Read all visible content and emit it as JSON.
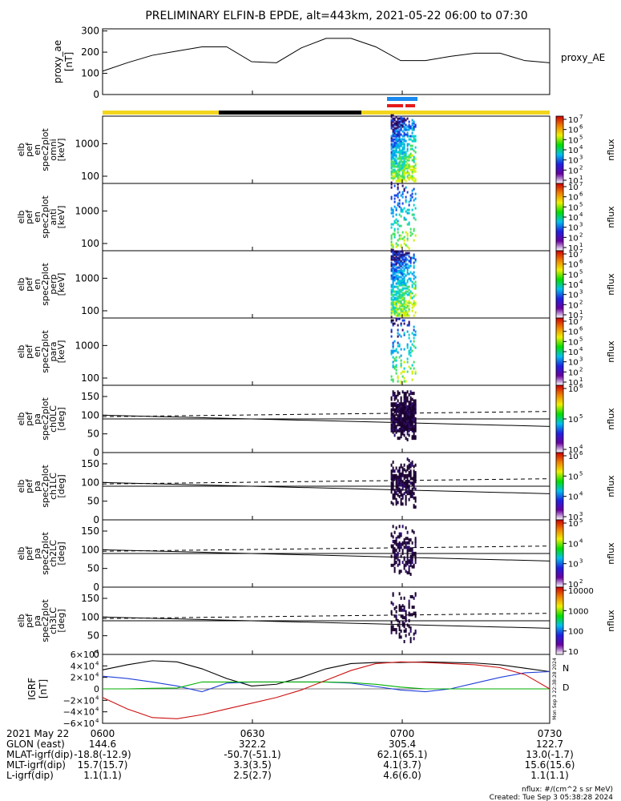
{
  "title": "PRELIMINARY ELFIN-B EPDE, alt=443km, 2021-05-22 06:00 to 07:30",
  "colors": {
    "sunlight_bar": "#f2d51c",
    "eclipse_bar": "#000000",
    "epd_bar_blue": "#1a8af0",
    "epd_bar_red": "#e41a1a",
    "grf_x": "#000000",
    "grf_y": "#1f3fd8",
    "grf_z": "#00b000",
    "grf_t": "#cc1111",
    "n_label": "#2040ff",
    "d_label": "#e07000"
  },
  "proxy_ae": {
    "ylabel": [
      "proxy_ae",
      "[nT]"
    ],
    "yticks": [
      "300",
      "200",
      "100",
      "0"
    ],
    "side_label": "proxy_AE"
  },
  "spectro_energy": [
    {
      "ylabel": [
        "elb",
        "pef",
        "en",
        "spec2plot",
        "omni",
        "[keV]"
      ],
      "yticks": [
        "1000",
        "100"
      ]
    },
    {
      "ylabel": [
        "elb",
        "pef",
        "en",
        "spec2plot",
        "anti",
        "[keV]"
      ],
      "yticks": [
        "1000",
        "100"
      ]
    },
    {
      "ylabel": [
        "elb",
        "pef",
        "en",
        "spec2plot",
        "perp",
        "[keV]"
      ],
      "yticks": [
        "1000",
        "100"
      ]
    },
    {
      "ylabel": [
        "elb",
        "pef",
        "en",
        "spec2plot",
        "para",
        "[keV]"
      ],
      "yticks": [
        "1000",
        "100"
      ]
    }
  ],
  "spectro_pitch": [
    {
      "ylabel": [
        "elb",
        "pef",
        "pa",
        "spec2plot",
        "ch0LC",
        "[deg]"
      ],
      "yticks": [
        "150",
        "100",
        "50",
        "0"
      ]
    },
    {
      "ylabel": [
        "elb",
        "pef",
        "pa",
        "spec2plot",
        "ch1LC",
        "[deg]"
      ],
      "yticks": [
        "150",
        "100",
        "50",
        "0"
      ]
    },
    {
      "ylabel": [
        "elb",
        "pef",
        "pa",
        "spec2plot",
        "ch2LC",
        "[deg]"
      ],
      "yticks": [
        "150",
        "100",
        "50",
        "0"
      ]
    },
    {
      "ylabel": [
        "elb",
        "pef",
        "pa",
        "spec2plot",
        "ch3LC",
        "[deg]"
      ],
      "yticks": [
        "150",
        "100",
        "50",
        "0"
      ]
    }
  ],
  "colorbars": [
    {
      "label": "nflux",
      "ticks": [
        "10",
        "10",
        "10",
        "10",
        "10",
        "10",
        "10"
      ],
      "exps": [
        "7",
        "6",
        "5",
        "4",
        "3",
        "2",
        "1"
      ]
    },
    {
      "label": "nflux",
      "ticks": [
        "10",
        "10",
        "10",
        "10",
        "10",
        "10",
        "10"
      ],
      "exps": [
        "7",
        "6",
        "5",
        "4",
        "3",
        "2",
        "1"
      ]
    },
    {
      "label": "nflux",
      "ticks": [
        "10",
        "10",
        "10",
        "10",
        "10",
        "10",
        "10"
      ],
      "exps": [
        "7",
        "6",
        "5",
        "4",
        "3",
        "2",
        "1"
      ]
    },
    {
      "label": "nflux",
      "ticks": [
        "10",
        "10",
        "10",
        "10",
        "10",
        "10",
        "10"
      ],
      "exps": [
        "7",
        "6",
        "5",
        "4",
        "3",
        "2",
        "1"
      ]
    },
    {
      "label": "nflux",
      "ticks": [
        "10",
        "10",
        "10"
      ],
      "exps": [
        "6",
        "5",
        "4"
      ]
    },
    {
      "label": "nflux",
      "ticks": [
        "10",
        "10",
        "10",
        "10"
      ],
      "exps": [
        "6",
        "5",
        "4",
        "3"
      ]
    },
    {
      "label": "nflux",
      "ticks": [
        "10",
        "10",
        "10",
        "10"
      ],
      "exps": [
        "5",
        "4",
        "3",
        "2"
      ]
    },
    {
      "label": "nflux",
      "ticks": [
        "10000",
        "1000",
        "100",
        "10"
      ],
      "exps": [
        "",
        "",
        "",
        ""
      ]
    }
  ],
  "grf": {
    "ylabel": [
      "IGRF",
      "[nT]"
    ],
    "yticks": [
      "6×10",
      "4×10",
      "2×10",
      "0",
      "−2×10",
      "−4×10",
      "−6×10"
    ],
    "ytick_exp": "4",
    "legend_n": "N",
    "legend_d": "D",
    "created_vertical": "Mon Sep  3 22:38:28 2024"
  },
  "ephemeris": {
    "rows": [
      {
        "label": "2021 May 22",
        "values": [
          "0600",
          "0630",
          "0700",
          "0730"
        ]
      },
      {
        "label": "GLON (east)",
        "values": [
          "144.6",
          "322.2",
          "305.4",
          "122.7"
        ]
      },
      {
        "label": "MLAT-igrf(dip)",
        "values": [
          "-18.8(-12.9)",
          "-50.7(-51.1)",
          "62.1(65.1)",
          "13.0(-1.7)"
        ]
      },
      {
        "label": "MLT-igrf(dip)",
        "values": [
          "15.7(15.7)",
          "3.3(3.5)",
          "4.1(3.7)",
          "15.6(15.6)"
        ]
      },
      {
        "label": "L-igrf(dip)",
        "values": [
          "1.1(1.1)",
          "2.5(2.7)",
          "4.6(6.0)",
          "1.1(1.1)"
        ]
      }
    ]
  },
  "footer": {
    "units": "nflux: #/(cm^2 s sr MeV)",
    "created": "Created: Tue Sep  3 05:38:28 2024"
  },
  "chart_data": [
    {
      "type": "line",
      "series": [
        {
          "name": "proxy_AE",
          "x": [
            "06:00",
            "06:05",
            "06:10",
            "06:15",
            "06:20",
            "06:25",
            "06:30",
            "06:35",
            "06:40",
            "06:45",
            "06:50",
            "06:55",
            "07:00",
            "07:05",
            "07:10",
            "07:15",
            "07:20",
            "07:25",
            "07:30"
          ],
          "values": [
            110,
            150,
            185,
            205,
            225,
            225,
            155,
            150,
            220,
            265,
            265,
            225,
            160,
            160,
            180,
            195,
            195,
            160,
            150
          ]
        }
      ],
      "ylabel": "proxy_ae [nT]",
      "ylim": [
        0,
        310
      ],
      "xlim": [
        "06:00",
        "07:30"
      ]
    },
    {
      "type": "heatmap",
      "panels": [
        "omni",
        "anti",
        "perp",
        "para",
        "ch0LC",
        "ch1LC",
        "ch2LC",
        "ch3LC"
      ],
      "activity_window": [
        "06:58",
        "07:03"
      ],
      "energy_range_keV": [
        60,
        7000
      ],
      "pitch_range_deg": [
        0,
        180
      ],
      "colorscale": "log nflux 10^1 - 10^7",
      "loss_cone_deg": {
        "solid_start": 100,
        "solid_end": 70,
        "dashed_start": 96,
        "dashed_end": 110,
        "horizontal": 90
      }
    },
    {
      "type": "line",
      "ylabel": "IGRF [nT]",
      "ylim": [
        -60000,
        60000
      ],
      "x": [
        "06:00",
        "06:05",
        "06:10",
        "06:15",
        "06:20",
        "06:25",
        "06:30",
        "06:35",
        "06:40",
        "06:45",
        "06:50",
        "06:55",
        "07:00",
        "07:05",
        "07:10",
        "07:15",
        "07:20",
        "07:25",
        "07:30"
      ],
      "series": [
        {
          "values": [
            33000,
            42000,
            49000,
            47000,
            35000,
            18000,
            5000,
            8000,
            20000,
            35000,
            44000,
            46000,
            46000,
            47000,
            46000,
            45000,
            42000,
            36000,
            30000
          ]
        },
        {
          "values": [
            22000,
            18000,
            12000,
            5000,
            -5000,
            10000,
            12000,
            12000,
            12000,
            12000,
            10000,
            4000,
            -2000,
            -5000,
            0,
            10000,
            20000,
            28000,
            30000
          ]
        },
        {
          "values": [
            0,
            0,
            1000,
            1500,
            12000,
            12000,
            12000,
            12000,
            12000,
            12000,
            11000,
            8000,
            3000,
            0,
            0,
            0,
            0,
            0,
            0
          ]
        },
        {
          "values": [
            -15000,
            -35000,
            -50000,
            -52000,
            -45000,
            -35000,
            -25000,
            -15000,
            -2000,
            15000,
            32000,
            44000,
            47000,
            46000,
            44000,
            42000,
            37000,
            25000,
            0
          ]
        }
      ]
    }
  ]
}
